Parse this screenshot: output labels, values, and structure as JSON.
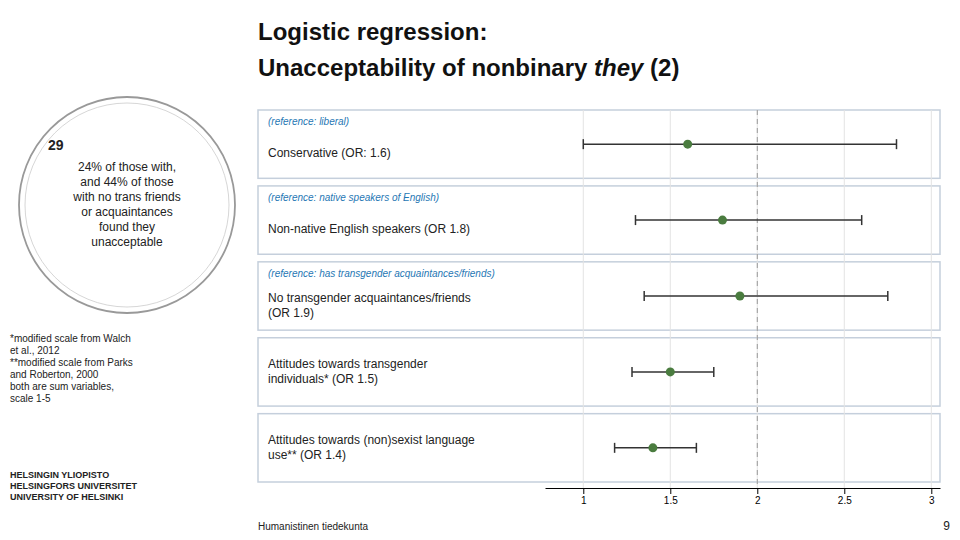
{
  "chart_data": {
    "type": "forest",
    "title": [
      [
        "Logistic regression:"
      ],
      [
        "Unacceptability of nonbinary ",
        "they",
        " (2)"
      ]
    ],
    "categories": [
      "Conservative (OR: 1.6)",
      "Non-native English speakers (OR 1.8)",
      "No transgender acquaintances/friends\n(OR 1.9)",
      "Attitudes towards transgender\nindividuals* (OR 1.5)",
      "Attitudes towards (non)sexist language\nuse** (OR 1.4)"
    ],
    "category_references": [
      "(reference: liberal)",
      "(reference: native speakers of English)",
      "(reference: has transgender acquaintances/friends)",
      null,
      null
    ],
    "values": [
      1.6,
      1.8,
      1.9,
      1.5,
      1.4
    ],
    "ci_low": [
      1.0,
      1.3,
      1.35,
      1.28,
      1.18
    ],
    "ci_high": [
      2.8,
      2.6,
      2.75,
      1.75,
      1.65
    ],
    "color": "#4a7c3f",
    "xlim": [
      0.78,
      3.05
    ],
    "xticks": [
      1,
      1.5,
      2,
      2.5,
      3
    ],
    "reference_line": 2.0,
    "grid": true,
    "annotations": [
      "29",
      "24% of those with,\nand 44% of those\nwith no trans friends\nor acquaintances\nfound they\nunacceptable",
      "*modified scale from Walch\net al., 2012\n**modified scale from Parks\nand Roberton, 2000\nboth are sum variables,\nscale 1-5",
      "Humanistinen tiedekunta",
      "9",
      "HELSINGIN YLIOPISTO\nHELSINGFORS UNIVERSITET\nUNIVERSITY OF HELSINKI"
    ]
  }
}
